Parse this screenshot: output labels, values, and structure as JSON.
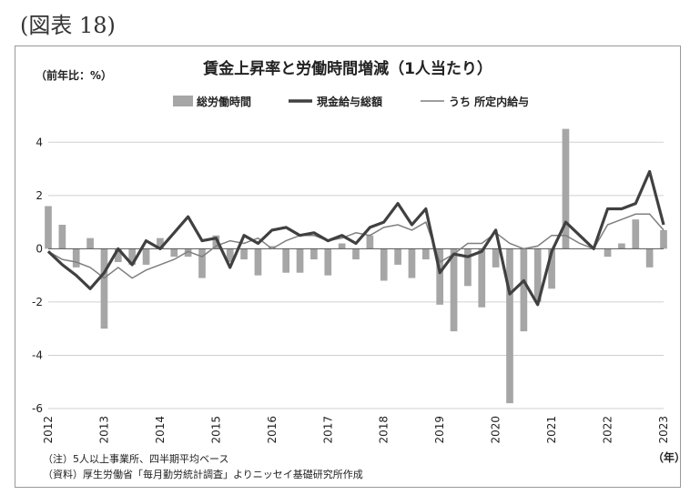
{
  "figure_label": "(図表 18)",
  "chart_data": {
    "type": "bar+line",
    "title": "賃金上昇率と労働時間増減（1人当たり）",
    "ylabel": "（前年比：%）",
    "xunit": "（年）",
    "ylim": [
      -6,
      5
    ],
    "yticks": [
      4,
      2,
      0,
      -2,
      -4,
      -6
    ],
    "grid": true,
    "legend_position": "top",
    "year_labels": [
      "2012",
      "2013",
      "2014",
      "2015",
      "2016",
      "2017",
      "2018",
      "2019",
      "2020",
      "2021",
      "2022",
      "2023"
    ],
    "quarters": [
      "2012Q1",
      "2012Q2",
      "2012Q3",
      "2012Q4",
      "2013Q1",
      "2013Q2",
      "2013Q3",
      "2013Q4",
      "2014Q1",
      "2014Q2",
      "2014Q3",
      "2014Q4",
      "2015Q1",
      "2015Q2",
      "2015Q3",
      "2015Q4",
      "2016Q1",
      "2016Q2",
      "2016Q3",
      "2016Q4",
      "2017Q1",
      "2017Q2",
      "2017Q3",
      "2017Q4",
      "2018Q1",
      "2018Q2",
      "2018Q3",
      "2018Q4",
      "2019Q1",
      "2019Q2",
      "2019Q3",
      "2019Q4",
      "2020Q1",
      "2020Q2",
      "2020Q3",
      "2020Q4",
      "2021Q1",
      "2021Q2",
      "2021Q3",
      "2021Q4",
      "2022Q1",
      "2022Q2",
      "2022Q3",
      "2022Q4",
      "2023Q1"
    ],
    "series": [
      {
        "name": "総労働時間",
        "type": "bar",
        "color": "#a6a6a6",
        "values": [
          1.6,
          0.9,
          -0.7,
          0.4,
          -3.0,
          -0.5,
          -0.6,
          -0.6,
          0.4,
          -0.3,
          -0.3,
          -1.1,
          0.5,
          -0.5,
          -0.4,
          -1.0,
          0.1,
          -0.9,
          -0.9,
          -0.4,
          -1.0,
          0.2,
          -0.4,
          0.5,
          -1.2,
          -0.6,
          -1.1,
          -0.4,
          -2.1,
          -3.1,
          -1.4,
          -2.2,
          -0.7,
          -5.8,
          -3.1,
          -2.0,
          -1.5,
          4.5,
          0.0,
          0.0,
          -0.3,
          0.2,
          1.1,
          -0.7,
          0.7
        ]
      },
      {
        "name": "現金給与総額",
        "type": "line",
        "color": "#404040",
        "values": [
          -0.1,
          -0.6,
          -1.0,
          -1.5,
          -0.9,
          0.0,
          -0.6,
          0.3,
          0.0,
          0.6,
          1.2,
          0.3,
          0.4,
          -0.7,
          0.5,
          0.2,
          0.7,
          0.8,
          0.5,
          0.6,
          0.3,
          0.5,
          0.2,
          0.8,
          1.0,
          1.7,
          0.9,
          1.5,
          -0.9,
          -0.2,
          -0.3,
          -0.1,
          0.7,
          -1.7,
          -1.2,
          -2.1,
          -0.1,
          1.0,
          0.5,
          0.0,
          1.5,
          1.5,
          1.7,
          2.9,
          0.9
        ]
      },
      {
        "name": "うち 所定内給与",
        "type": "line",
        "color": "#7f7f7f",
        "values": [
          -0.1,
          -0.4,
          -0.5,
          -0.7,
          -1.1,
          -0.7,
          -1.1,
          -0.8,
          -0.6,
          -0.4,
          -0.1,
          -0.3,
          0.1,
          0.3,
          0.2,
          0.4,
          0.0,
          0.3,
          0.5,
          0.5,
          0.3,
          0.4,
          0.6,
          0.5,
          0.8,
          0.9,
          0.7,
          1.0,
          -0.5,
          -0.2,
          0.2,
          0.2,
          0.6,
          0.2,
          0.0,
          0.1,
          0.5,
          0.5,
          0.2,
          0.0,
          0.9,
          1.1,
          1.3,
          1.3,
          0.7
        ]
      }
    ]
  },
  "notes": [
    "（注）5人以上事業所、四半期平均ベース",
    "（資料）厚生労働省「毎月勤労統計調査」よりニッセイ基礎研究所作成"
  ]
}
